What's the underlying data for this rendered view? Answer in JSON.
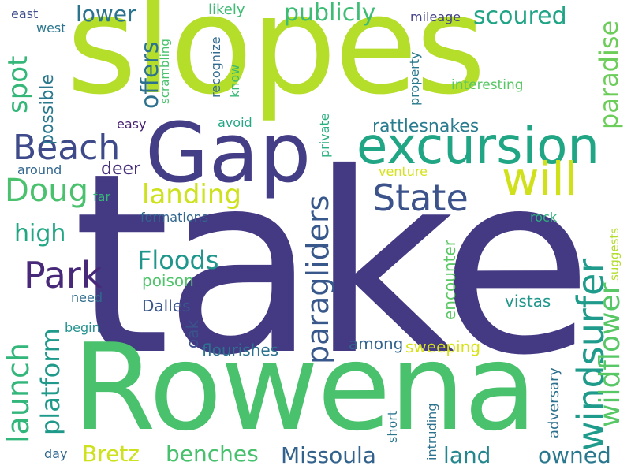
{
  "words": [
    {
      "text": "take",
      "color": "#443983"
    },
    {
      "text": "Rowena",
      "color": "#4ac16d"
    },
    {
      "text": "slopes",
      "color": "#b5de2b"
    },
    {
      "text": "Gap",
      "color": "#433e85"
    },
    {
      "text": "excursion",
      "color": "#21a685"
    },
    {
      "text": "will",
      "color": "#d0e11c"
    },
    {
      "text": "windsurfer",
      "color": "#1e9b8a"
    },
    {
      "text": "paragliders",
      "color": "#38588c"
    },
    {
      "text": "wildflower",
      "color": "#58c765"
    },
    {
      "text": "paradise",
      "color": "#6ccd5a"
    },
    {
      "text": "State",
      "color": "#3b528b"
    },
    {
      "text": "Beach",
      "color": "#3e4a89"
    },
    {
      "text": "Park",
      "color": "#482979"
    },
    {
      "text": "Doug",
      "color": "#4ac16d"
    },
    {
      "text": "launch",
      "color": "#32b67a"
    },
    {
      "text": "platform",
      "color": "#1f9a8a"
    },
    {
      "text": "landing",
      "color": "#cde11d"
    },
    {
      "text": "Floods",
      "color": "#1f968b"
    },
    {
      "text": "spot",
      "color": "#35b779"
    },
    {
      "text": "offers",
      "color": "#2c728e"
    },
    {
      "text": "lower",
      "color": "#2c738e"
    },
    {
      "text": "publicly",
      "color": "#3dbc74"
    },
    {
      "text": "scoured",
      "color": "#20a486"
    },
    {
      "text": "high",
      "color": "#22a785"
    },
    {
      "text": "Bretz",
      "color": "#cde11d"
    },
    {
      "text": "benches",
      "color": "#48c16e"
    },
    {
      "text": "Missoula",
      "color": "#33638d"
    },
    {
      "text": "land",
      "color": "#24878e"
    },
    {
      "text": "owned",
      "color": "#2a788e"
    },
    {
      "text": "possible",
      "color": "#2a788e"
    },
    {
      "text": "rattlesnakes",
      "color": "#297b8e"
    },
    {
      "text": "deer",
      "color": "#472d7b"
    },
    {
      "text": "poison",
      "color": "#50c46a"
    },
    {
      "text": "Dalles",
      "color": "#3a548c"
    },
    {
      "text": "oak",
      "color": "#3b528b"
    },
    {
      "text": "flourishes",
      "color": "#2c728e"
    },
    {
      "text": "among",
      "color": "#32648e"
    },
    {
      "text": "sweeping",
      "color": "#d8e219"
    },
    {
      "text": "vistas",
      "color": "#1f988b"
    },
    {
      "text": "encounter",
      "color": "#5ac864"
    },
    {
      "text": "adversary",
      "color": "#2d718e"
    },
    {
      "text": "likely",
      "color": "#3fbc73"
    },
    {
      "text": "mileage",
      "color": "#424086"
    },
    {
      "text": "interesting",
      "color": "#58c765"
    },
    {
      "text": "property",
      "color": "#29798e"
    },
    {
      "text": "recognize",
      "color": "#306a8e"
    },
    {
      "text": "know",
      "color": "#38b977"
    },
    {
      "text": "private",
      "color": "#2ab07f"
    },
    {
      "text": "avoid",
      "color": "#22a884"
    },
    {
      "text": "easy",
      "color": "#482173"
    },
    {
      "text": "around",
      "color": "#31668e"
    },
    {
      "text": "far",
      "color": "#37b878"
    },
    {
      "text": "formations",
      "color": "#31668e"
    },
    {
      "text": "venture",
      "color": "#d5e21a"
    },
    {
      "text": "rock",
      "color": "#2db27d"
    },
    {
      "text": "suggests",
      "color": "#b2dd2d"
    },
    {
      "text": "need",
      "color": "#2f6b8e"
    },
    {
      "text": "begin",
      "color": "#21918c"
    },
    {
      "text": "day",
      "color": "#31688e"
    },
    {
      "text": "short",
      "color": "#2a778e"
    },
    {
      "text": "intruding",
      "color": "#2c718e"
    },
    {
      "text": "scrambling",
      "color": "#4ac16d"
    },
    {
      "text": "east",
      "color": "#3d4e8a"
    },
    {
      "text": "west",
      "color": "#2b758e"
    }
  ]
}
